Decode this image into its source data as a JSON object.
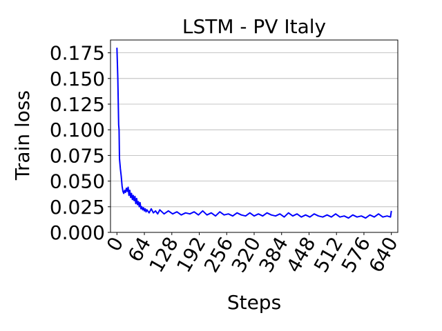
{
  "chart_data": {
    "type": "line",
    "title": "LSTM - PV Italy",
    "xlabel": "Steps",
    "ylabel": "Train loss",
    "xlim": [
      -15,
      655
    ],
    "ylim": [
      0.0,
      0.1875
    ],
    "xticks": [
      0,
      64,
      128,
      192,
      256,
      320,
      384,
      448,
      512,
      576,
      640
    ],
    "xtick_labels": [
      "0",
      "64",
      "128",
      "192",
      "256",
      "320",
      "384",
      "448",
      "512",
      "576",
      "640"
    ],
    "yticks": [
      0.0,
      0.025,
      0.05,
      0.075,
      0.1,
      0.125,
      0.15,
      0.175
    ],
    "ytick_labels": [
      "0.000",
      "0.025",
      "0.050",
      "0.075",
      "0.100",
      "0.125",
      "0.150",
      "0.175"
    ],
    "grid": "horizontal",
    "legend": "none",
    "series": [
      {
        "color": "#0000ff",
        "x": [
          0,
          2,
          4,
          5,
          6,
          8,
          10,
          12,
          14,
          16,
          18,
          20,
          22,
          24,
          26,
          28,
          30,
          32,
          34,
          36,
          38,
          40,
          42,
          44,
          46,
          48,
          50,
          52,
          54,
          56,
          58,
          60,
          62,
          64,
          66,
          68,
          70,
          75,
          80,
          85,
          90,
          95,
          100,
          110,
          120,
          130,
          140,
          150,
          160,
          170,
          180,
          190,
          200,
          210,
          220,
          230,
          240,
          250,
          260,
          270,
          280,
          290,
          300,
          310,
          320,
          330,
          340,
          350,
          360,
          370,
          380,
          390,
          400,
          410,
          420,
          430,
          440,
          450,
          460,
          470,
          480,
          490,
          500,
          510,
          520,
          530,
          540,
          550,
          560,
          570,
          580,
          590,
          600,
          610,
          620,
          630,
          638,
          640
        ],
        "y": [
          0.18,
          0.15,
          0.105,
          0.1,
          0.072,
          0.062,
          0.055,
          0.045,
          0.04,
          0.038,
          0.041,
          0.039,
          0.043,
          0.04,
          0.044,
          0.036,
          0.041,
          0.034,
          0.038,
          0.032,
          0.036,
          0.031,
          0.035,
          0.028,
          0.033,
          0.027,
          0.03,
          0.025,
          0.029,
          0.023,
          0.025,
          0.022,
          0.024,
          0.021,
          0.023,
          0.02,
          0.022,
          0.019,
          0.023,
          0.019,
          0.021,
          0.018,
          0.022,
          0.018,
          0.021,
          0.018,
          0.02,
          0.017,
          0.019,
          0.018,
          0.02,
          0.017,
          0.021,
          0.017,
          0.019,
          0.016,
          0.02,
          0.017,
          0.018,
          0.016,
          0.019,
          0.017,
          0.016,
          0.019,
          0.016,
          0.018,
          0.016,
          0.019,
          0.017,
          0.016,
          0.018,
          0.015,
          0.019,
          0.016,
          0.018,
          0.015,
          0.017,
          0.015,
          0.018,
          0.016,
          0.015,
          0.017,
          0.015,
          0.018,
          0.015,
          0.016,
          0.014,
          0.017,
          0.015,
          0.016,
          0.014,
          0.017,
          0.015,
          0.018,
          0.015,
          0.016,
          0.015,
          0.021
        ]
      }
    ]
  }
}
